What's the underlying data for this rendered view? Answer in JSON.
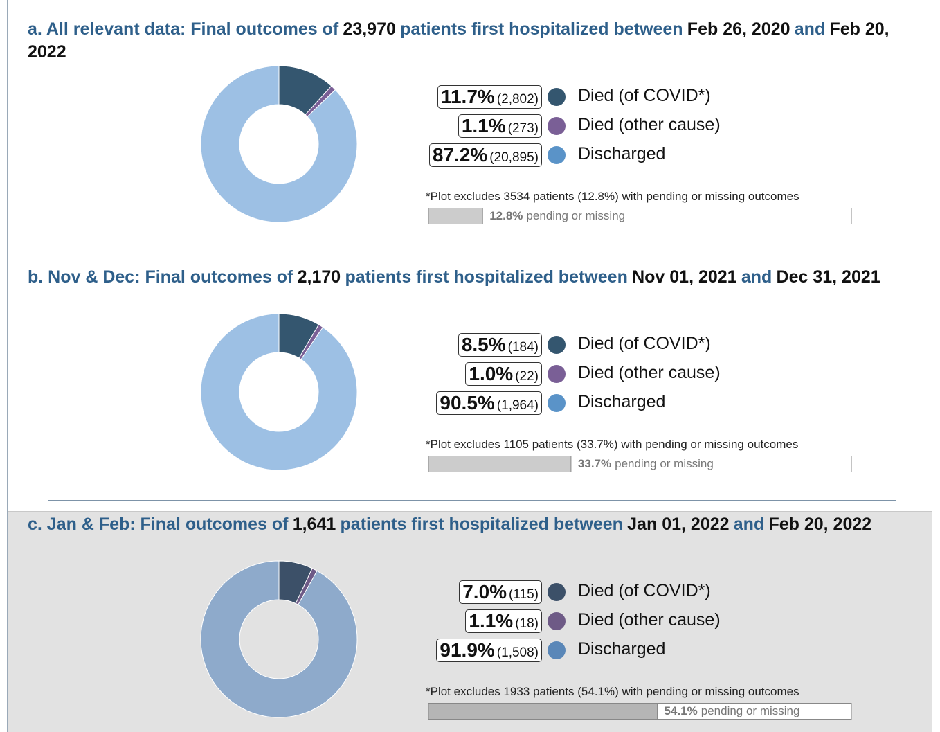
{
  "chart_data": [
    {
      "type": "pie",
      "donut": true,
      "title_parts": [
        "a. All relevant data: Final outcomes of",
        "23,970",
        "patients first hospitalized between",
        "Feb 26, 2020",
        "and",
        "Feb 20, 2022"
      ],
      "categories": [
        "Died (of COVID*)",
        "Died (other cause)",
        "Discharged"
      ],
      "values": [
        11.7,
        1.1,
        87.2
      ],
      "value_labels": [
        "11.7%",
        "1.1%",
        "87.2%"
      ],
      "count_labels": [
        "(2,802)",
        "(273)",
        "(20,895)"
      ],
      "colors": [
        "#34566f",
        "#7a5f96",
        "#9dc0e4"
      ],
      "legend_colors": [
        "#34566f",
        "#7a5f96",
        "#5a93c8"
      ],
      "note": "*Plot excludes 3534 patients (12.8%) with pending or missing outcomes",
      "pending": {
        "value": 12.8,
        "label": "12.8%",
        "text": "pending or missing",
        "xlim": [
          0,
          100
        ],
        "color": "#cccccc"
      }
    },
    {
      "type": "pie",
      "donut": true,
      "title_parts": [
        "b. Nov & Dec: Final outcomes of",
        "2,170",
        "patients first hospitalized between",
        "Nov 01, 2021",
        "and",
        "Dec 31, 2021"
      ],
      "categories": [
        "Died (of COVID*)",
        "Died (other cause)",
        "Discharged"
      ],
      "values": [
        8.5,
        1.0,
        90.5
      ],
      "value_labels": [
        "8.5%",
        "1.0%",
        "90.5%"
      ],
      "count_labels": [
        "(184)",
        "(22)",
        "(1,964)"
      ],
      "colors": [
        "#34566f",
        "#7a5f96",
        "#9dc0e4"
      ],
      "legend_colors": [
        "#34566f",
        "#7a5f96",
        "#5a93c8"
      ],
      "note": "*Plot excludes 1105 patients (33.7%) with pending or missing outcomes",
      "pending": {
        "value": 33.7,
        "label": "33.7%",
        "text": "pending or missing",
        "xlim": [
          0,
          100
        ],
        "color": "#cccccc"
      }
    },
    {
      "type": "pie",
      "donut": true,
      "title_parts": [
        "c. Jan & Feb: Final outcomes of",
        "1,641",
        "patients first hospitalized between",
        "Jan 01, 2022",
        "and",
        "Feb 20, 2022"
      ],
      "categories": [
        "Died (of COVID*)",
        "Died (other cause)",
        "Discharged"
      ],
      "values": [
        7.0,
        1.1,
        91.9
      ],
      "value_labels": [
        "7.0%",
        "1.1%",
        "91.9%"
      ],
      "count_labels": [
        "(115)",
        "(18)",
        "(1,508)"
      ],
      "colors": [
        "#3c5068",
        "#6e5a86",
        "#8eaacb"
      ],
      "legend_colors": [
        "#3c5068",
        "#6e5a86",
        "#5a87b8"
      ],
      "note": "*Plot excludes 1933 patients (54.1%) with pending or missing outcomes",
      "pending": {
        "value": 54.1,
        "label": "54.1%",
        "text": "pending or missing",
        "xlim": [
          0,
          100
        ],
        "color": "#b5b5b5"
      }
    }
  ]
}
